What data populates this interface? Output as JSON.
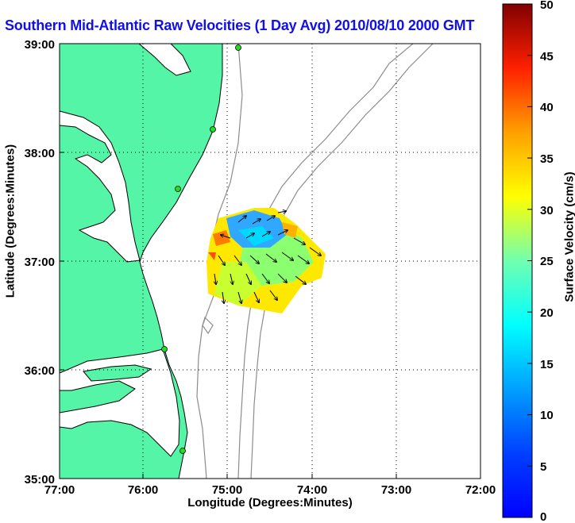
{
  "title": "Southern Mid-Atlantic Raw Velocities (1 Day Avg) 2010/08/10 2000 GMT",
  "axes": {
    "xlabel": "Longitude (Degrees:Minutes)",
    "ylabel": "Latitude (Degrees:Minutes)",
    "xticks": [
      "77:00",
      "76:00",
      "75:00",
      "74:00",
      "73:00",
      "72:00"
    ],
    "yticks": [
      "39:00",
      "38:00",
      "37:00",
      "36:00",
      "35:00"
    ],
    "grid": "dotted"
  },
  "colorbar": {
    "label": "Surface Velocity (cm/s)",
    "min": 0,
    "max": 50,
    "ticks": [
      "0",
      "5",
      "10",
      "15",
      "20",
      "25",
      "30",
      "35",
      "40",
      "45",
      "50"
    ],
    "colormap": "jet"
  },
  "colors": {
    "land": "#55f5a8",
    "coast": "#000000",
    "bathymetry": "#8c8c8c",
    "stations": "#22dd22",
    "title": "#1010e8"
  },
  "chart_data": {
    "type": "heatmap",
    "title": "Southern Mid-Atlantic Raw Velocities (1 Day Avg) 2010/08/10 2000 GMT",
    "xlabel": "Longitude (Degrees:Minutes)",
    "ylabel": "Latitude (Degrees:Minutes)",
    "xlim": [
      -77,
      -72
    ],
    "ylim": [
      35,
      39
    ],
    "units": "cm/s",
    "field": [
      {
        "lon": -75.05,
        "lat": 37.35,
        "speed": 10,
        "dir": 20
      },
      {
        "lon": -74.85,
        "lat": 37.25,
        "speed": 8,
        "dir": 30
      },
      {
        "lon": -74.65,
        "lat": 37.2,
        "speed": 14,
        "dir": 45
      },
      {
        "lon": -75.1,
        "lat": 37.15,
        "speed": 30,
        "dir": 200
      },
      {
        "lon": -74.55,
        "lat": 37.05,
        "speed": 27,
        "dir": 110
      },
      {
        "lon": -75.15,
        "lat": 36.95,
        "speed": 22,
        "dir": 160
      },
      {
        "lon": -74.9,
        "lat": 36.9,
        "speed": 24,
        "dir": 170
      },
      {
        "lon": -74.7,
        "lat": 36.85,
        "speed": 23,
        "dir": 150
      },
      {
        "lon": -75.0,
        "lat": 36.7,
        "speed": 21,
        "dir": 175
      },
      {
        "lon": -74.75,
        "lat": 36.65,
        "speed": 20,
        "dir": 160
      }
    ]
  }
}
